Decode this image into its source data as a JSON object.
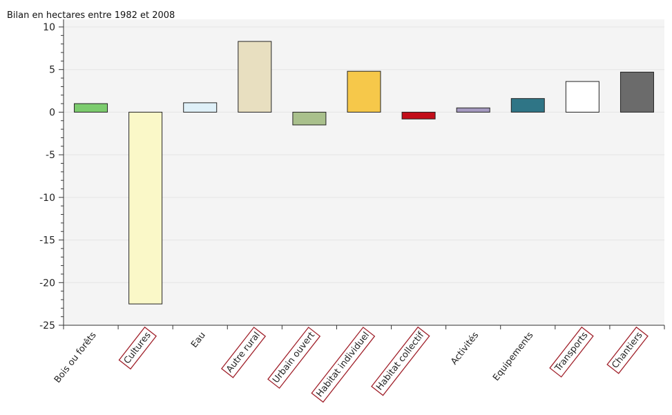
{
  "chart_data": {
    "type": "bar",
    "title": "Bilan en hectares entre 1982 et 2008",
    "xlabel": "",
    "ylabel": "",
    "ylim": [
      -25,
      10
    ],
    "yticks": [
      10,
      5,
      0,
      -5,
      -10,
      -15,
      -20,
      -25
    ],
    "grid": true,
    "legend": "none",
    "categories": [
      "Bois ou forêts",
      "Cultures",
      "Eau",
      "Autre rural",
      "Urbain ouvert",
      "Habitat individuel",
      "Habitat collectif",
      "Activités",
      "Equipements",
      "Transports",
      "Chantiers"
    ],
    "values": [
      1.0,
      -22.5,
      1.1,
      8.3,
      -1.5,
      4.8,
      -0.8,
      0.5,
      1.6,
      3.6,
      4.7
    ],
    "colors": [
      "#7ccc6e",
      "#faf8c8",
      "#dff0f8",
      "#e8dfc0",
      "#a9c08c",
      "#f6c84a",
      "#c20e1a",
      "#a59ac0",
      "#2f7586",
      "#ffffff",
      "#6b6b6b"
    ],
    "highlighted": [
      false,
      true,
      false,
      true,
      true,
      true,
      true,
      false,
      false,
      true,
      true
    ],
    "highlight_color": "#a0202a"
  }
}
